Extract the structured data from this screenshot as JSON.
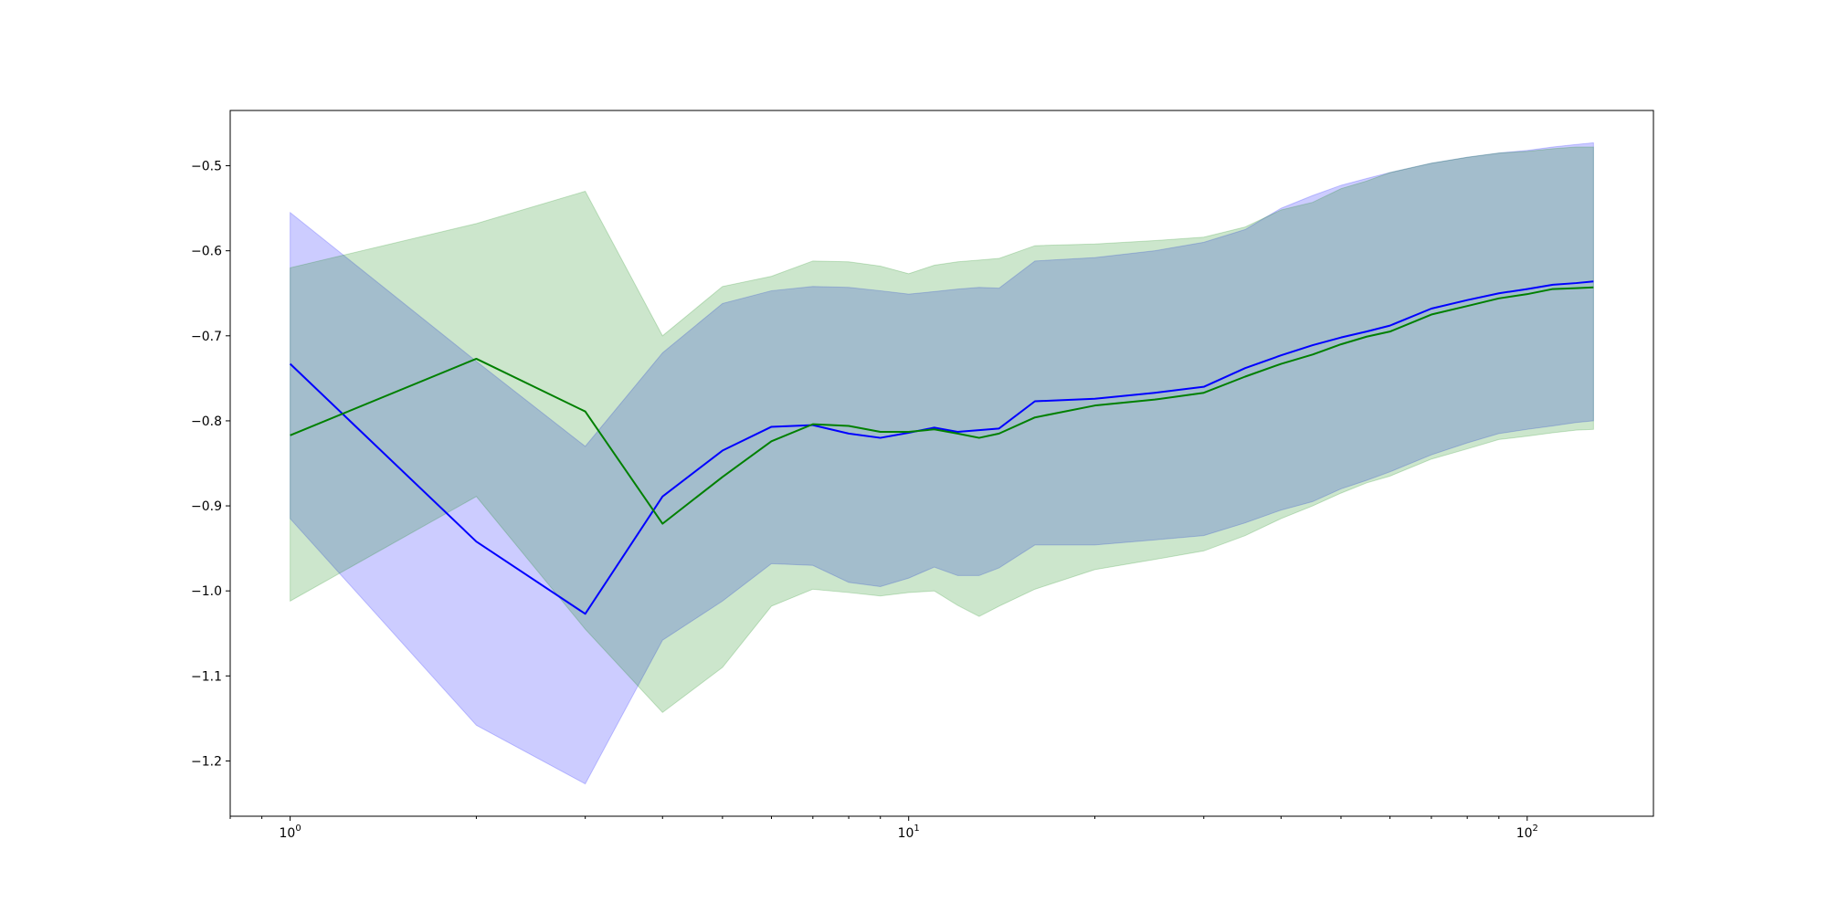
{
  "chart_data": {
    "type": "line",
    "title": "",
    "xlabel": "",
    "ylabel": "",
    "x_scale": "log",
    "xlim": [
      0.8,
      160
    ],
    "ylim": [
      -1.265,
      -0.435
    ],
    "grid": false,
    "x_ticks": [
      {
        "value": 1,
        "base": "10",
        "exp": "0"
      },
      {
        "value": 10,
        "base": "10",
        "exp": "1"
      },
      {
        "value": 100,
        "base": "10",
        "exp": "2"
      }
    ],
    "y_ticks": [
      {
        "value": -0.5,
        "label": "−0.5"
      },
      {
        "value": -0.6,
        "label": "−0.6"
      },
      {
        "value": -0.7,
        "label": "−0.7"
      },
      {
        "value": -0.8,
        "label": "−0.8"
      },
      {
        "value": -0.9,
        "label": "−0.9"
      },
      {
        "value": -1.0,
        "label": "−1.0"
      },
      {
        "value": -1.1,
        "label": "−1.1"
      },
      {
        "value": -1.2,
        "label": "−1.2"
      }
    ],
    "x": [
      1,
      2,
      3,
      4,
      5,
      6,
      7,
      8,
      9,
      10,
      11,
      12,
      13,
      14,
      16,
      20,
      25,
      30,
      35,
      40,
      45,
      50,
      55,
      60,
      70,
      80,
      90,
      100,
      110,
      120,
      128
    ],
    "series": [
      {
        "color": "#0000ff",
        "band_color": "#0000ff",
        "values": [
          -0.733,
          -0.942,
          -1.027,
          -0.889,
          -0.835,
          -0.807,
          -0.805,
          -0.815,
          -0.82,
          -0.814,
          -0.808,
          -0.813,
          -0.811,
          -0.809,
          -0.777,
          -0.774,
          -0.767,
          -0.76,
          -0.738,
          -0.723,
          -0.711,
          -0.702,
          -0.695,
          -0.688,
          -0.668,
          -0.658,
          -0.65,
          -0.645,
          -0.64,
          -0.638,
          -0.636
        ],
        "upper": [
          -0.555,
          -0.73,
          -0.83,
          -0.72,
          -0.662,
          -0.647,
          -0.642,
          -0.643,
          -0.647,
          -0.651,
          -0.648,
          -0.645,
          -0.643,
          -0.644,
          -0.612,
          -0.608,
          -0.6,
          -0.59,
          -0.575,
          -0.55,
          -0.535,
          -0.523,
          -0.515,
          -0.508,
          -0.497,
          -0.49,
          -0.485,
          -0.482,
          -0.478,
          -0.475,
          -0.473
        ],
        "lower": [
          -0.915,
          -1.158,
          -1.227,
          -1.058,
          -1.012,
          -0.968,
          -0.97,
          -0.99,
          -0.995,
          -0.985,
          -0.972,
          -0.982,
          -0.982,
          -0.973,
          -0.946,
          -0.946,
          -0.94,
          -0.935,
          -0.92,
          -0.905,
          -0.895,
          -0.88,
          -0.87,
          -0.86,
          -0.84,
          -0.826,
          -0.815,
          -0.81,
          -0.806,
          -0.802,
          -0.8
        ]
      },
      {
        "color": "#008000",
        "band_color": "#008000",
        "values": [
          -0.817,
          -0.727,
          -0.789,
          -0.921,
          -0.866,
          -0.824,
          -0.804,
          -0.806,
          -0.813,
          -0.813,
          -0.81,
          -0.815,
          -0.82,
          -0.815,
          -0.796,
          -0.782,
          -0.775,
          -0.767,
          -0.748,
          -0.733,
          -0.722,
          -0.71,
          -0.701,
          -0.695,
          -0.675,
          -0.665,
          -0.656,
          -0.651,
          -0.645,
          -0.644,
          -0.643
        ],
        "upper": [
          -0.62,
          -0.568,
          -0.53,
          -0.7,
          -0.642,
          -0.63,
          -0.612,
          -0.613,
          -0.618,
          -0.627,
          -0.617,
          -0.613,
          -0.611,
          -0.609,
          -0.594,
          -0.592,
          -0.588,
          -0.584,
          -0.572,
          -0.552,
          -0.543,
          -0.527,
          -0.518,
          -0.508,
          -0.497,
          -0.49,
          -0.485,
          -0.483,
          -0.48,
          -0.478,
          -0.478
        ],
        "lower": [
          -1.012,
          -0.889,
          -1.045,
          -1.143,
          -1.09,
          -1.018,
          -0.998,
          -1.002,
          -1.006,
          -1.002,
          -1.0,
          -1.017,
          -1.03,
          -1.018,
          -0.998,
          -0.975,
          -0.963,
          -0.953,
          -0.935,
          -0.915,
          -0.9,
          -0.885,
          -0.873,
          -0.865,
          -0.845,
          -0.833,
          -0.822,
          -0.818,
          -0.814,
          -0.811,
          -0.81
        ]
      }
    ]
  }
}
